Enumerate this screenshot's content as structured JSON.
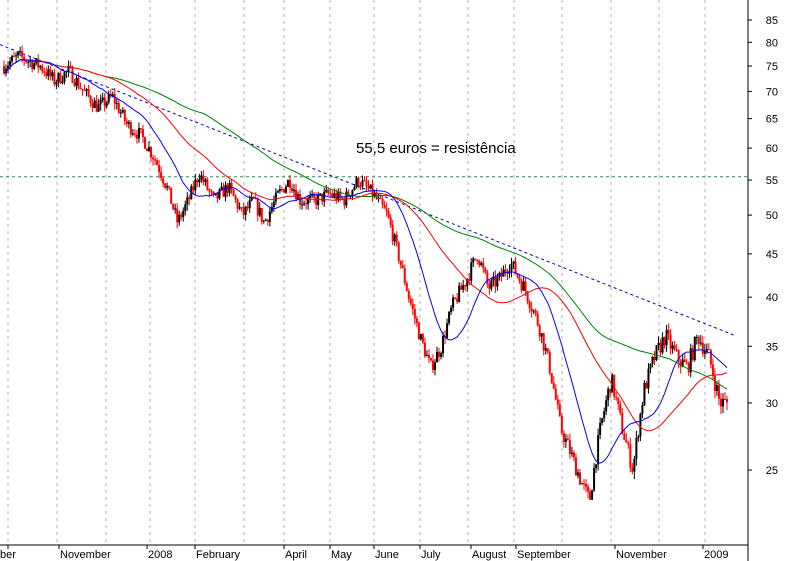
{
  "chart_data": {
    "type": "candlestick",
    "title": "",
    "annotation": "55,5 euros = resistência",
    "y_scale": "log",
    "ylim": [
      20,
      90
    ],
    "y_ticks": [
      25,
      30,
      35,
      40,
      45,
      50,
      55,
      60,
      65,
      70,
      75,
      80,
      85
    ],
    "x_ticks": [
      "ber",
      "November",
      "2008",
      "February",
      "April",
      "May",
      "June",
      "July",
      "August",
      "September",
      "November",
      "2009"
    ],
    "resistance_level": 55.5,
    "trendline": {
      "from": [
        0,
        79.5
      ],
      "to": [
        1,
        36
      ]
    },
    "grid": {
      "vertical": true,
      "style": "dashed"
    },
    "price_path": [
      [
        0.0,
        75
      ],
      [
        0.02,
        77
      ],
      [
        0.05,
        75
      ],
      [
        0.07,
        72
      ],
      [
        0.09,
        74
      ],
      [
        0.11,
        70
      ],
      [
        0.13,
        67
      ],
      [
        0.15,
        69
      ],
      [
        0.17,
        64
      ],
      [
        0.19,
        62
      ],
      [
        0.21,
        58
      ],
      [
        0.225,
        54
      ],
      [
        0.24,
        49
      ],
      [
        0.255,
        52
      ],
      [
        0.27,
        56
      ],
      [
        0.29,
        52
      ],
      [
        0.31,
        54
      ],
      [
        0.33,
        50
      ],
      [
        0.345,
        52
      ],
      [
        0.36,
        49
      ],
      [
        0.38,
        53
      ],
      [
        0.395,
        55
      ],
      [
        0.41,
        52
      ],
      [
        0.43,
        52
      ],
      [
        0.45,
        53
      ],
      [
        0.47,
        52
      ],
      [
        0.49,
        55
      ],
      [
        0.51,
        53
      ],
      [
        0.53,
        50
      ],
      [
        0.545,
        45
      ],
      [
        0.56,
        40
      ],
      [
        0.575,
        36
      ],
      [
        0.59,
        33
      ],
      [
        0.605,
        35
      ],
      [
        0.62,
        39
      ],
      [
        0.64,
        42
      ],
      [
        0.655,
        45
      ],
      [
        0.67,
        41
      ],
      [
        0.685,
        42
      ],
      [
        0.7,
        44
      ],
      [
        0.72,
        41
      ],
      [
        0.74,
        37
      ],
      [
        0.755,
        33
      ],
      [
        0.77,
        28
      ],
      [
        0.785,
        26
      ],
      [
        0.8,
        24
      ],
      [
        0.81,
        23
      ],
      [
        0.825,
        28
      ],
      [
        0.84,
        32
      ],
      [
        0.855,
        28
      ],
      [
        0.87,
        25
      ],
      [
        0.885,
        31
      ],
      [
        0.9,
        34
      ],
      [
        0.915,
        36
      ],
      [
        0.93,
        34
      ],
      [
        0.945,
        33
      ],
      [
        0.96,
        36
      ],
      [
        0.975,
        34
      ],
      [
        0.99,
        30
      ]
    ],
    "series": [
      {
        "name": "",
        "kind": "price"
      },
      {
        "name": "",
        "kind": "moving-average",
        "period": 20,
        "color": "#0000ff"
      },
      {
        "name": "",
        "kind": "moving-average",
        "period": 50,
        "color": "#ff0000"
      },
      {
        "name": "",
        "kind": "moving-average",
        "period": 100,
        "color": "#008000"
      }
    ],
    "colors": {
      "up_bar": "#000000",
      "down_bar": "#ff0000",
      "resistance": "#2e8b57",
      "trendline": "#0000cd",
      "grid": "#b0b0b0"
    }
  }
}
